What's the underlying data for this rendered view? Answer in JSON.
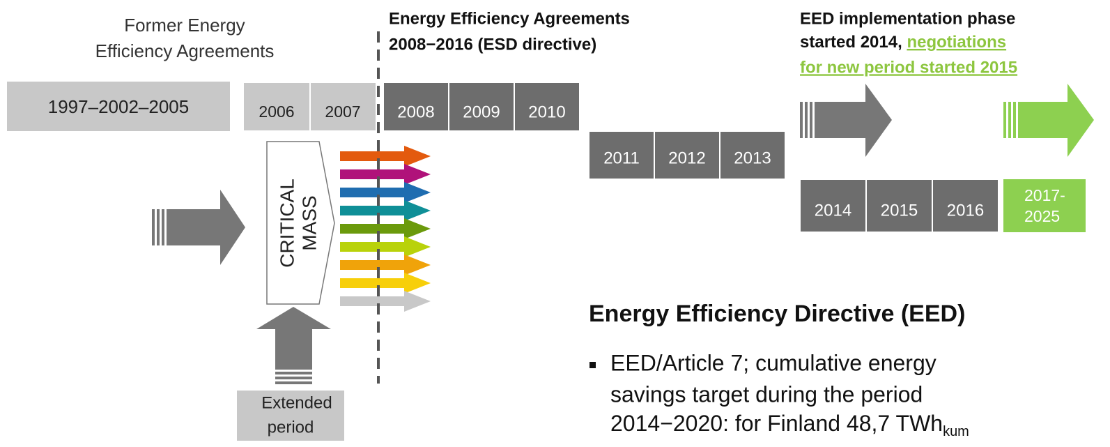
{
  "former": {
    "title": [
      "Former Energy",
      "Efficiency Agreements"
    ],
    "box": "1997–2002–2005",
    "years": [
      "2006",
      "2007"
    ]
  },
  "critical_mass": [
    "CRITICAL",
    "MASS"
  ],
  "extended": [
    "Extended",
    "period"
  ],
  "esd": {
    "heading": [
      "Energy Efficiency Agreements",
      "2008−2016 (ESD directive)"
    ],
    "years_a": [
      "2008",
      "2009",
      "2010"
    ],
    "years_b": [
      "2011",
      "2012",
      "2013"
    ]
  },
  "eed_phase": {
    "line1": "EED implementation phase",
    "line2": "started 2014,",
    "link": [
      "negotiations",
      "for new period started 2015"
    ],
    "years": [
      "2014",
      "2015",
      "2016"
    ],
    "new_period": [
      "2017-",
      "2025"
    ]
  },
  "directive": {
    "title": "Energy Efficiency Directive (EED)",
    "bullet": [
      "EED/Article 7; cumulative energy",
      "savings target during the period",
      "2014−2020: for Finland 48,7 TWh"
    ],
    "subscript": "kum"
  }
}
